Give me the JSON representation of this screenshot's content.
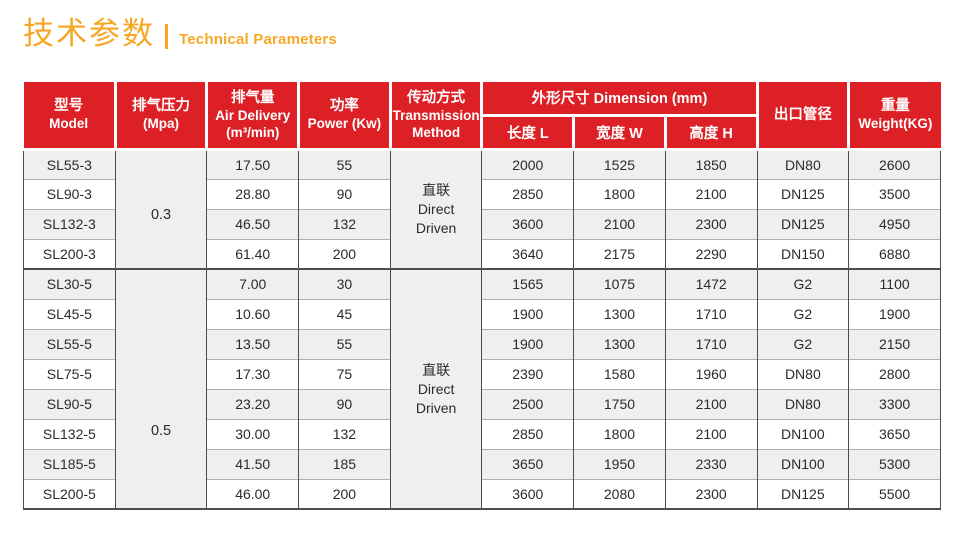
{
  "page": {
    "title_zh": "技术参数",
    "title_en": "Technical Parameters"
  },
  "colors": {
    "header_red": "#dc2026",
    "accent_orange": "#f6a725",
    "row_alt_gray": "#efefef"
  },
  "table": {
    "header": {
      "model": {
        "zh": "型号",
        "en": "Model"
      },
      "pressure": {
        "zh": "排气压力",
        "en": "(Mpa)"
      },
      "air_delivery": {
        "zh": "排气量",
        "en": "Air Delivery",
        "unit": "(m³/min)"
      },
      "power": {
        "zh": "功率",
        "en": "Power (Kw)"
      },
      "transmission": {
        "zh": "传动方式",
        "en_line1": "Transmission",
        "en_line2": "Method"
      },
      "dimension": {
        "label": "外形尺寸 Dimension (mm)",
        "sub": [
          "长度 L",
          "宽度 W",
          "高度 H"
        ]
      },
      "outlet": {
        "zh": "出口管径"
      },
      "weight": {
        "zh": "重量",
        "en": "Weight(KG)"
      }
    },
    "groups": [
      {
        "pressure": "0.3",
        "transmission_lines": [
          "直联",
          "Direct",
          "Driven"
        ],
        "rows": [
          [
            "SL55-3",
            "17.50",
            "55",
            "2000",
            "1525",
            "1850",
            "DN80",
            "2600"
          ],
          [
            "SL90-3",
            "28.80",
            "90",
            "2850",
            "1800",
            "2100",
            "DN125",
            "3500"
          ],
          [
            "SL132-3",
            "46.50",
            "132",
            "3600",
            "2100",
            "2300",
            "DN125",
            "4950"
          ],
          [
            "SL200-3",
            "61.40",
            "200",
            "3640",
            "2175",
            "2290",
            "DN150",
            "6880"
          ]
        ]
      },
      {
        "pressure": "0.5",
        "transmission_lines": [
          "直联",
          "Direct",
          "Driven"
        ],
        "rows": [
          [
            "SL30-5",
            "7.00",
            "30",
            "1565",
            "1075",
            "1472",
            "G2",
            "1100"
          ],
          [
            "SL45-5",
            "10.60",
            "45",
            "1900",
            "1300",
            "1710",
            "G2",
            "1900"
          ],
          [
            "SL55-5",
            "13.50",
            "55",
            "1900",
            "1300",
            "1710",
            "G2",
            "2150"
          ],
          [
            "SL75-5",
            "17.30",
            "75",
            "2390",
            "1580",
            "1960",
            "DN80",
            "2800"
          ],
          [
            "SL90-5",
            "23.20",
            "90",
            "2500",
            "1750",
            "2100",
            "DN80",
            "3300"
          ],
          [
            "SL132-5",
            "30.00",
            "132",
            "2850",
            "1800",
            "2100",
            "DN100",
            "3650"
          ],
          [
            "SL185-5",
            "41.50",
            "185",
            "3650",
            "1950",
            "2330",
            "DN100",
            "5300"
          ],
          [
            "SL200-5",
            "46.00",
            "200",
            "3600",
            "2080",
            "2300",
            "DN125",
            "5500"
          ]
        ]
      }
    ]
  }
}
